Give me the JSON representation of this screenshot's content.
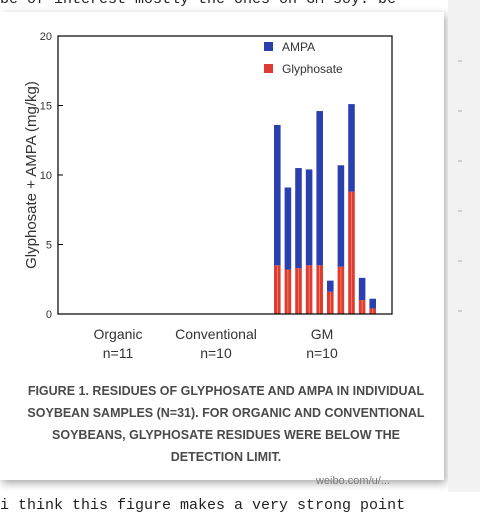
{
  "page": {
    "top_text": "be of interest mostly the ones on GM soy.  be",
    "bottom_text": "i think this figure makes a very strong point",
    "watermark": "weibo.com/u/..."
  },
  "figure": {
    "caption": "FIGURE 1. RESIDUES OF GLYPHOSATE AND AMPA IN INDIVIDUAL SOYBEAN SAMPLES (N=31). FOR ORGANIC AND CONVENTIONAL SOYBEANS, GLYPHOSATE RESIDUES WERE BELOW THE DETECTION LIMIT."
  },
  "colors": {
    "ampa": "#2b3fae",
    "glyphosate": "#e03b2f",
    "axis": "#000000",
    "label": "#333333"
  },
  "chart_data": {
    "type": "bar",
    "stacked": true,
    "ylabel": "Glyphosate + AMPA (mg/kg)",
    "ylim": [
      0,
      20
    ],
    "yticks": [
      0,
      5,
      10,
      15,
      20
    ],
    "groups": [
      {
        "label": "Organic",
        "n_label": "n=11",
        "bars": 0
      },
      {
        "label": "Conventional",
        "n_label": "n=10",
        "bars": 0
      },
      {
        "label": "GM",
        "n_label": "n=10",
        "bars": 10
      }
    ],
    "legend": {
      "placement": "top-right",
      "entries": [
        "AMPA",
        "Glyphosate"
      ]
    },
    "series": [
      {
        "name": "Glyphosate",
        "values": [
          3.5,
          3.2,
          3.3,
          3.5,
          3.5,
          1.6,
          3.4,
          8.8,
          1.0,
          0.4
        ]
      },
      {
        "name": "AMPA",
        "values": [
          10.1,
          5.9,
          7.2,
          6.9,
          11.1,
          0.8,
          7.3,
          6.3,
          1.6,
          0.7
        ]
      }
    ]
  }
}
